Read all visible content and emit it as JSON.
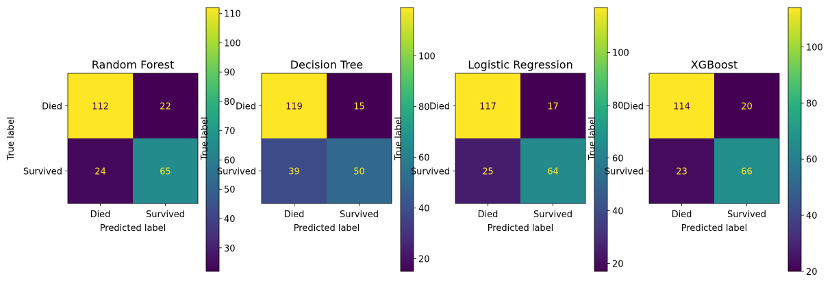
{
  "chart_data": [
    {
      "type": "heatmap",
      "title": "Random Forest",
      "xlabel": "Predicted label",
      "ylabel": "True label",
      "x_categories": [
        "Died",
        "Survived"
      ],
      "y_categories": [
        "Died",
        "Survived"
      ],
      "values": [
        [
          112,
          22
        ],
        [
          24,
          65
        ]
      ],
      "colormap": "viridis",
      "colorbar": {
        "min": 22,
        "max": 112,
        "ticks": [
          30,
          40,
          50,
          60,
          70,
          80,
          90,
          100,
          110
        ]
      }
    },
    {
      "type": "heatmap",
      "title": "Decision Tree",
      "xlabel": "Predicted label",
      "ylabel": "True label",
      "x_categories": [
        "Died",
        "Survived"
      ],
      "y_categories": [
        "Died",
        "Survived"
      ],
      "values": [
        [
          119,
          15
        ],
        [
          39,
          50
        ]
      ],
      "colormap": "viridis",
      "colorbar": {
        "min": 15,
        "max": 119,
        "ticks": [
          20,
          40,
          60,
          80,
          100
        ]
      }
    },
    {
      "type": "heatmap",
      "title": "Logistic Regression",
      "xlabel": "Predicted label",
      "ylabel": "True label",
      "x_categories": [
        "Died",
        "Survived"
      ],
      "y_categories": [
        "Died",
        "Survived"
      ],
      "values": [
        [
          117,
          17
        ],
        [
          25,
          64
        ]
      ],
      "colormap": "viridis",
      "colorbar": {
        "min": 17,
        "max": 117,
        "ticks": [
          20,
          40,
          60,
          80,
          100
        ]
      }
    },
    {
      "type": "heatmap",
      "title": "XGBoost",
      "xlabel": "Predicted label",
      "ylabel": "True label",
      "x_categories": [
        "Died",
        "Survived"
      ],
      "y_categories": [
        "Died",
        "Survived"
      ],
      "values": [
        [
          114,
          20
        ],
        [
          23,
          66
        ]
      ],
      "colormap": "viridis",
      "colorbar": {
        "min": 20,
        "max": 114,
        "ticks": [
          20,
          40,
          60,
          80,
          100
        ]
      }
    }
  ]
}
